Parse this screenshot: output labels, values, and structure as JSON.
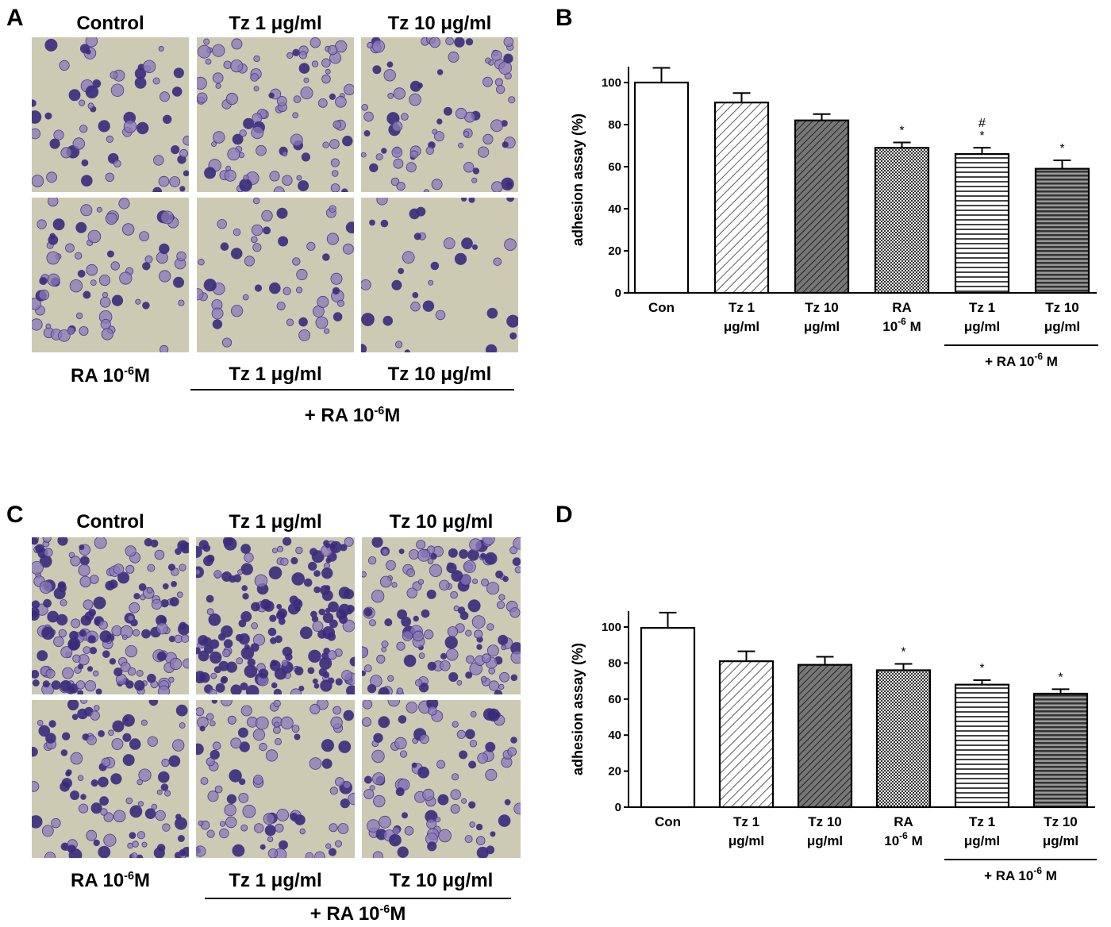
{
  "panels": {
    "a": {
      "letter": "A",
      "top_labels": [
        "Control",
        "Tz 1 μg/ml",
        "Tz 10 μg/ml"
      ],
      "bottom_labels": {
        "ra_base": "RA 10",
        "ra_exp": "-6",
        "ra_unit": "M",
        "tz1": "Tz 1 μg/ml",
        "tz10": "Tz 10 μg/ml"
      },
      "group_label": {
        "base": "+ RA 10",
        "exp": "-6",
        "unit": "M"
      }
    },
    "c": {
      "letter": "C",
      "top_labels": [
        "Control",
        "Tz 1 μg/ml",
        "Tz 10 μg/ml"
      ],
      "bottom_labels": {
        "ra_base": "RA 10",
        "ra_exp": "-6",
        "ra_unit": "M",
        "tz1": "Tz 1 μg/ml",
        "tz10": "Tz 10 μg/ml"
      },
      "group_label": {
        "base": "+ RA 10",
        "exp": "-6",
        "unit": "M"
      }
    }
  },
  "chart_data": [
    {
      "letter": "B",
      "type": "bar",
      "ylabel": "adhesion assay (%)",
      "ylim": [
        0,
        100
      ],
      "yticks": [
        0,
        20,
        40,
        60,
        80,
        100
      ],
      "categories": [
        [
          "Con"
        ],
        [
          "Tz 1",
          "μg/ml"
        ],
        [
          "Tz 10",
          "μg/ml"
        ],
        [
          "RA",
          "10|-6| M"
        ],
        [
          "Tz 1",
          "μg/ml"
        ],
        [
          "Tz 10",
          "μg/ml"
        ]
      ],
      "values": [
        100,
        90.5,
        82,
        69,
        66,
        59
      ],
      "errors": [
        7,
        4.5,
        3,
        2.5,
        3,
        4
      ],
      "annotations": [
        "",
        "",
        "",
        "*",
        "#\n*",
        "*"
      ],
      "patterns": [
        "white",
        "diag-light",
        "diag-dark",
        "checker",
        "hstripe-light",
        "hstripe-dark"
      ],
      "group_label": {
        "base": "+ RA 10",
        "exp": "-6",
        "unit": " M"
      }
    },
    {
      "letter": "D",
      "type": "bar",
      "ylabel": "adhesion assay (%)",
      "ylim": [
        0,
        100
      ],
      "yticks": [
        0,
        20,
        40,
        60,
        80,
        100
      ],
      "categories": [
        [
          "Con"
        ],
        [
          "Tz 1",
          "μg/ml"
        ],
        [
          "Tz 10",
          "μg/ml"
        ],
        [
          "RA",
          "10|-6| M"
        ],
        [
          "Tz 1",
          "μg/ml"
        ],
        [
          "Tz 10",
          "μg/ml"
        ]
      ],
      "values": [
        99.5,
        81,
        79,
        76,
        68,
        63
      ],
      "errors": [
        8.5,
        5.5,
        4.5,
        3.5,
        2.5,
        2.5
      ],
      "annotations": [
        "",
        "",
        "",
        "*",
        "*",
        "*"
      ],
      "patterns": [
        "white",
        "diag-light",
        "diag-dark",
        "checker",
        "hstripe-light",
        "hstripe-dark"
      ],
      "group_label": {
        "base": "+ RA 10",
        "exp": "-6",
        "unit": " M"
      }
    }
  ]
}
